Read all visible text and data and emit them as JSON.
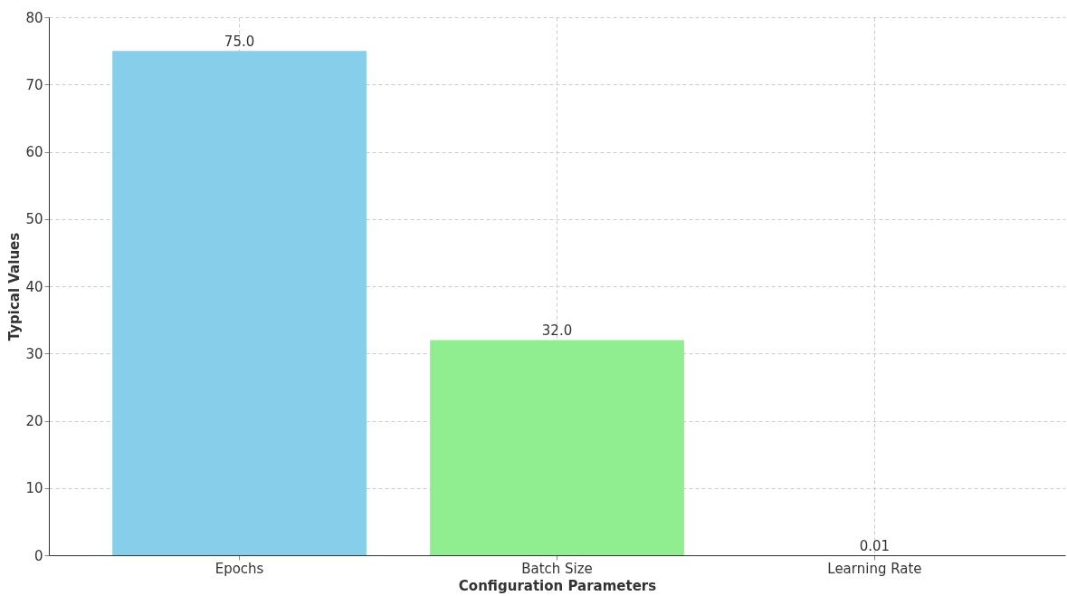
{
  "chart_data": {
    "type": "bar",
    "xlabel": "Configuration Parameters",
    "ylabel": "Typical Values",
    "categories": [
      "Epochs",
      "Batch Size",
      "Learning Rate"
    ],
    "values": [
      75,
      32,
      0.01
    ],
    "colors": [
      "#87ceeb",
      "#90ee90",
      "#fa8072"
    ],
    "value_labels": [
      "75.0",
      "32.0",
      "0.01"
    ],
    "ylim": [
      0,
      80
    ],
    "yticks": [
      0,
      10,
      20,
      30,
      40,
      50,
      60,
      70,
      80
    ],
    "grid": true
  }
}
